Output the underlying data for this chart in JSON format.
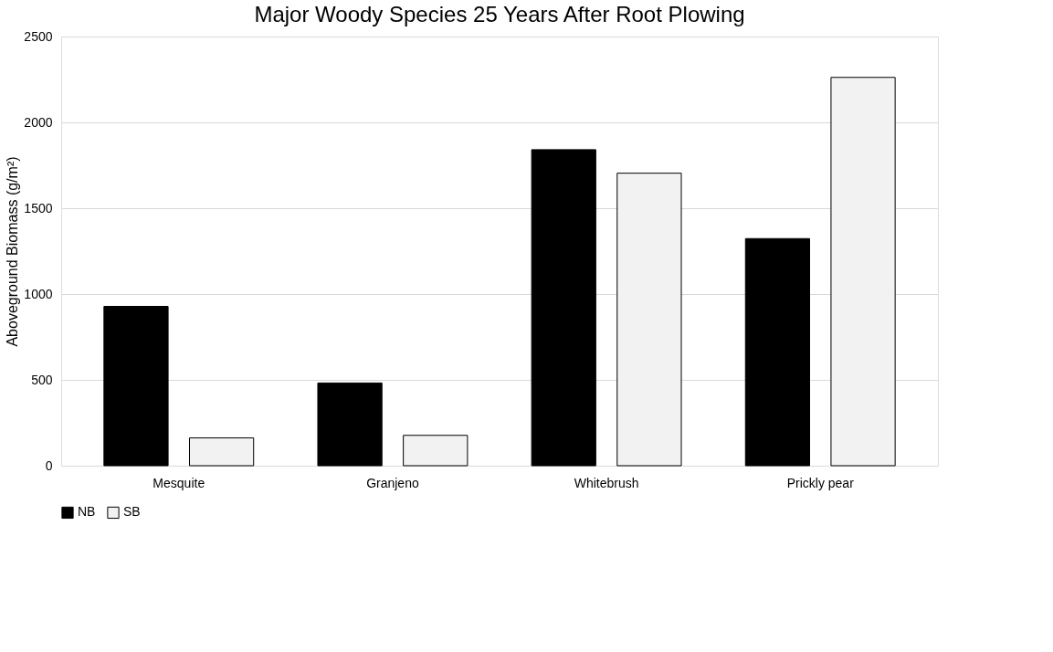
{
  "chart_data": {
    "type": "bar",
    "title": "Major Woody Species 25 Years After Root Plowing",
    "ylabel": "Aboveground Biomass (g/m²)",
    "categories": [
      "Mesquite",
      "Granjeno",
      "Whitebrush",
      "Prickly pear"
    ],
    "series": [
      {
        "name": "NB",
        "color": "#000000",
        "values": [
          928,
          482,
          1841,
          1323
        ]
      },
      {
        "name": "SB",
        "color": "#f2f2f2",
        "values": [
          162,
          177,
          1704,
          2262
        ]
      }
    ],
    "ylim": [
      0,
      2500
    ],
    "yticks": [
      0,
      500,
      1000,
      1500,
      2000,
      2500
    ],
    "grid": "y",
    "legend": "bottom"
  }
}
